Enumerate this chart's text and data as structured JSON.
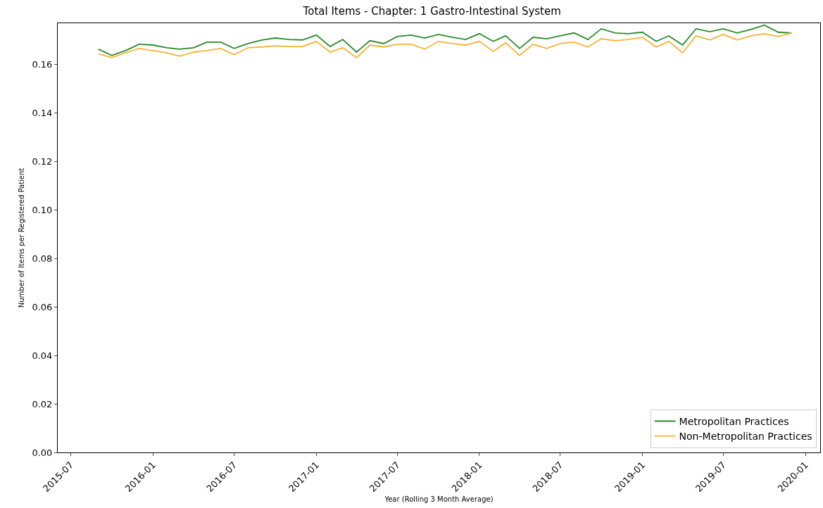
{
  "chart_data": {
    "type": "line",
    "title": "Total Items - Chapter: 1 Gastro-Intestinal System",
    "xlabel": "Year (Rolling 3 Month Average)",
    "ylabel": "Number of Items per Registered Patient",
    "x": [
      "2015-09",
      "2015-10",
      "2015-11",
      "2015-12",
      "2016-01",
      "2016-02",
      "2016-03",
      "2016-04",
      "2016-05",
      "2016-06",
      "2016-07",
      "2016-08",
      "2016-09",
      "2016-10",
      "2016-11",
      "2016-12",
      "2017-01",
      "2017-02",
      "2017-03",
      "2017-04",
      "2017-05",
      "2017-06",
      "2017-07",
      "2017-08",
      "2017-09",
      "2017-10",
      "2017-11",
      "2017-12",
      "2018-01",
      "2018-02",
      "2018-03",
      "2018-04",
      "2018-05",
      "2018-06",
      "2018-07",
      "2018-08",
      "2018-09",
      "2018-10",
      "2018-11",
      "2018-12",
      "2019-01",
      "2019-02",
      "2019-03",
      "2019-04",
      "2019-05",
      "2019-06",
      "2019-07",
      "2019-08",
      "2019-09",
      "2019-10",
      "2019-11",
      "2019-12"
    ],
    "series": [
      {
        "name": "Metropolitan Practices",
        "color": "#2a8c2a",
        "values": [
          0.1664,
          0.1638,
          0.1658,
          0.1684,
          0.1681,
          0.167,
          0.1664,
          0.167,
          0.1693,
          0.1693,
          0.1667,
          0.1687,
          0.1702,
          0.171,
          0.1704,
          0.1702,
          0.1722,
          0.1675,
          0.1704,
          0.1652,
          0.1699,
          0.1687,
          0.1716,
          0.1722,
          0.171,
          0.1725,
          0.1713,
          0.1704,
          0.1728,
          0.1696,
          0.1719,
          0.1667,
          0.1713,
          0.1707,
          0.1719,
          0.1731,
          0.1704,
          0.1748,
          0.1731,
          0.1728,
          0.1734,
          0.1696,
          0.1719,
          0.1681,
          0.1748,
          0.1736,
          0.1748,
          0.1731,
          0.1745,
          0.1763,
          0.1734,
          0.1731
        ]
      },
      {
        "name": "Non-Metropolitan Practices",
        "color": "#f9b233",
        "values": [
          0.1644,
          0.1629,
          0.1649,
          0.1667,
          0.1658,
          0.1649,
          0.1635,
          0.1652,
          0.1658,
          0.1667,
          0.1641,
          0.167,
          0.1673,
          0.1678,
          0.1675,
          0.1675,
          0.1696,
          0.1652,
          0.167,
          0.1629,
          0.1681,
          0.1673,
          0.1684,
          0.1684,
          0.1664,
          0.1696,
          0.1687,
          0.1681,
          0.1696,
          0.1655,
          0.169,
          0.1638,
          0.1684,
          0.1667,
          0.1687,
          0.1693,
          0.1673,
          0.1707,
          0.1699,
          0.1704,
          0.1713,
          0.1673,
          0.1696,
          0.1649,
          0.1719,
          0.1702,
          0.1725,
          0.1702,
          0.1719,
          0.1728,
          0.1716,
          0.1731
        ]
      }
    ],
    "xlim": [
      "2015-06-02",
      "2020-02-03"
    ],
    "xticks": [
      {
        "value": "2015-07",
        "label": "2015-07"
      },
      {
        "value": "2016-01",
        "label": "2016-01"
      },
      {
        "value": "2016-07",
        "label": "2016-07"
      },
      {
        "value": "2017-01",
        "label": "2017-01"
      },
      {
        "value": "2017-07",
        "label": "2017-07"
      },
      {
        "value": "2018-01",
        "label": "2018-01"
      },
      {
        "value": "2018-07",
        "label": "2018-07"
      },
      {
        "value": "2019-01",
        "label": "2019-01"
      },
      {
        "value": "2019-07",
        "label": "2019-07"
      },
      {
        "value": "2020-01",
        "label": "2020-01"
      }
    ],
    "ylim": [
      0,
      0.1771
    ],
    "yticks": [
      {
        "value": 0,
        "label": "0.00"
      },
      {
        "value": 0.02,
        "label": "0.02"
      },
      {
        "value": 0.04,
        "label": "0.04"
      },
      {
        "value": 0.06,
        "label": "0.06"
      },
      {
        "value": 0.08,
        "label": "0.08"
      },
      {
        "value": 0.1,
        "label": "0.10"
      },
      {
        "value": 0.12,
        "label": "0.12"
      },
      {
        "value": 0.14,
        "label": "0.14"
      },
      {
        "value": 0.16,
        "label": "0.16"
      }
    ],
    "grid": false,
    "legend": "bottom right",
    "marker": "none",
    "line_style": "solid"
  }
}
